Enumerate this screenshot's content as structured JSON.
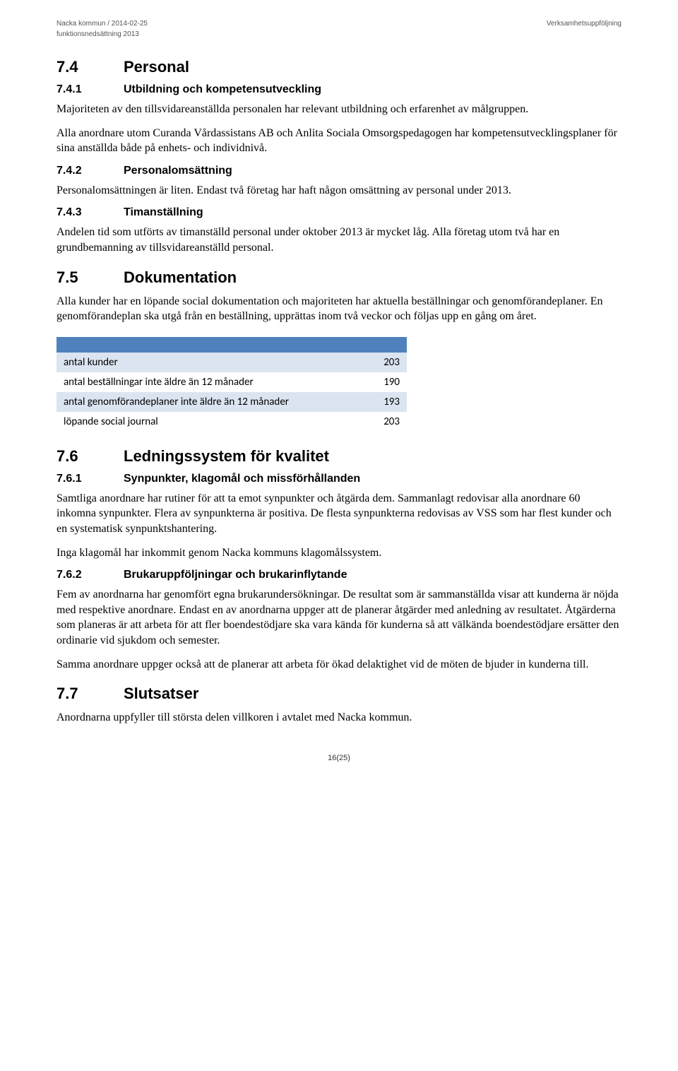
{
  "header": {
    "left": "Nacka kommun  /  2014-02-25",
    "right": "Verksamhetsuppföljning",
    "sub": "funktionsnedsättning 2013"
  },
  "s74": {
    "num": "7.4",
    "title": "Personal"
  },
  "s741": {
    "num": "7.4.1",
    "title": "Utbildning och kompetensutveckling",
    "p1": "Majoriteten av den tillsvidareanställda personalen har relevant utbildning och erfarenhet av målgruppen.",
    "p2": "Alla anordnare utom Curanda Vårdassistans AB och Anlita Sociala Omsorgspedagogen har kompetensutvecklingsplaner för sina anställda både på enhets- och individnivå."
  },
  "s742": {
    "num": "7.4.2",
    "title": "Personalomsättning",
    "p1": "Personalomsättningen är liten. Endast två företag har haft någon omsättning av personal under 2013."
  },
  "s743": {
    "num": "7.4.3",
    "title": "Timanställning",
    "p1": "Andelen tid som utförts av timanställd personal under oktober 2013 är mycket låg. Alla företag utom två har en grundbemanning av tillsvidareanställd personal."
  },
  "s75": {
    "num": "7.5",
    "title": "Dokumentation",
    "p1": "Alla kunder har en löpande social dokumentation och majoriteten har aktuella beställningar och genomförandeplaner. En genomförandeplan ska utgå från en beställning, upprättas inom två veckor och följas upp en gång om året."
  },
  "table": {
    "columns": [
      "",
      ""
    ],
    "rows": [
      {
        "label": "antal kunder",
        "value": "203"
      },
      {
        "label": "antal beställningar inte äldre än 12 månader",
        "value": "190"
      },
      {
        "label": "antal genomförandeplaner inte äldre än 12 månader",
        "value": "193"
      },
      {
        "label": "löpande social journal",
        "value": "203"
      }
    ],
    "header_bg": "#4f81bd",
    "row_alt_bg": "#dbe5f1",
    "row_bg": "#ffffff"
  },
  "s76": {
    "num": "7.6",
    "title": "Ledningssystem för kvalitet"
  },
  "s761": {
    "num": "7.6.1",
    "title": "Synpunkter, klagomål och missförhållanden",
    "p1": "Samtliga anordnare har rutiner för att ta emot synpunkter och åtgärda dem. Sammanlagt redovisar alla anordnare 60 inkomna synpunkter. Flera av synpunkterna är positiva. De flesta synpunkterna redovisas av VSS som har flest kunder och en systematisk synpunktshantering.",
    "p2": "Inga klagomål har inkommit genom Nacka kommuns klagomålssystem."
  },
  "s762": {
    "num": "7.6.2",
    "title": "Brukaruppföljningar och brukarinflytande",
    "p1": "Fem av anordnarna har genomfört egna brukarundersökningar. De resultat som är sammanställda visar att kunderna är nöjda med respektive anordnare. Endast en av anordnarna uppger att de planerar åtgärder med anledning av resultatet. Åtgärderna som planeras är att arbeta för att fler boendestödjare ska vara kända för kunderna så att välkända boendestödjare ersätter den ordinarie vid sjukdom och semester.",
    "p2": "Samma anordnare uppger också att de planerar att arbeta för ökad delaktighet vid de möten de bjuder in kunderna till."
  },
  "s77": {
    "num": "7.7",
    "title": "Slutsatser",
    "p1": "Anordnarna uppfyller till största delen villkoren i avtalet med Nacka kommun."
  },
  "page_number": "16(25)"
}
